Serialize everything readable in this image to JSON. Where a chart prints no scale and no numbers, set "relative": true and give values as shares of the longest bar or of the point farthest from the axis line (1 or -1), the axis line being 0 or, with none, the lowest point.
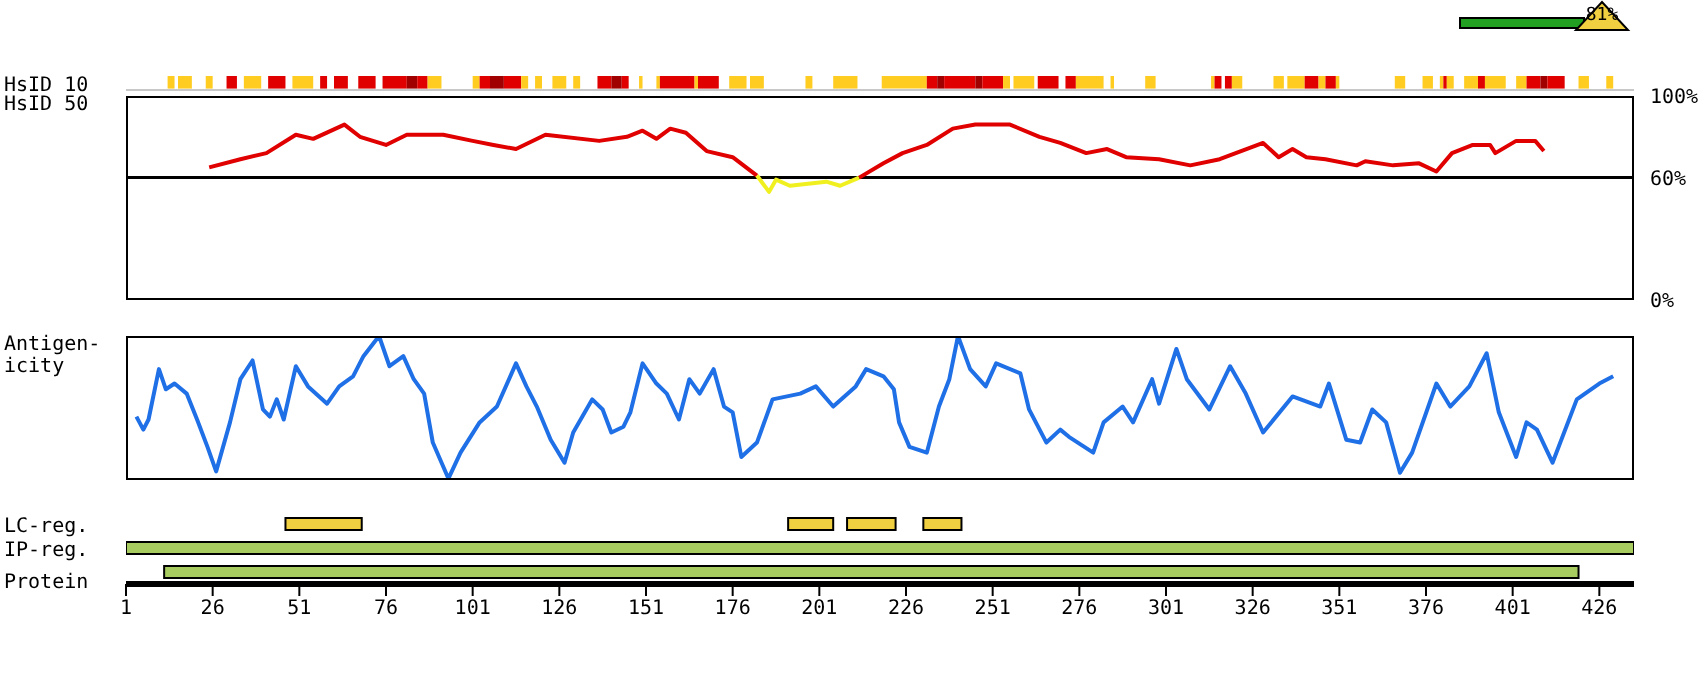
{
  "chart_data": [
    {
      "type": "bar",
      "orientation": "horizontal",
      "categories": [
        "HsID 10"
      ],
      "xlim": [
        1,
        436
      ],
      "tick_labels": "y",
      "annotations": [
        "81%"
      ],
      "series": [
        {
          "color": "#ffcc22",
          "base": [
            13
          ],
          "values": [
            2
          ]
        },
        {
          "color": "#ffcc22",
          "base": [
            16
          ],
          "values": [
            4
          ]
        },
        {
          "color": "#ffcc22",
          "base": [
            24
          ],
          "values": [
            2
          ]
        },
        {
          "color": "#e00000",
          "base": [
            30
          ],
          "values": [
            3
          ]
        },
        {
          "color": "#ffcc22",
          "base": [
            35
          ],
          "values": [
            5
          ]
        },
        {
          "color": "#e00000",
          "base": [
            42
          ],
          "values": [
            5
          ]
        },
        {
          "color": "#ffcc22",
          "base": [
            49
          ],
          "values": [
            6
          ]
        },
        {
          "color": "#e00000",
          "base": [
            57
          ],
          "values": [
            2
          ]
        },
        {
          "color": "#e00000",
          "base": [
            61
          ],
          "values": [
            4
          ]
        },
        {
          "color": "#e00000",
          "base": [
            68
          ],
          "values": [
            5
          ]
        },
        {
          "color": "#e00000",
          "base": [
            75
          ],
          "values": [
            7
          ]
        },
        {
          "color": "#a00000",
          "base": [
            82
          ],
          "values": [
            3
          ]
        },
        {
          "color": "#e00000",
          "base": [
            85
          ],
          "values": [
            3
          ]
        },
        {
          "color": "#ffcc22",
          "base": [
            88
          ],
          "values": [
            4
          ]
        },
        {
          "color": "#ffcc22",
          "base": [
            101
          ],
          "values": [
            2
          ]
        },
        {
          "color": "#e00000",
          "base": [
            103
          ],
          "values": [
            3
          ]
        },
        {
          "color": "#a00000",
          "base": [
            106
          ],
          "values": [
            4
          ]
        },
        {
          "color": "#e00000",
          "base": [
            110
          ],
          "values": [
            5
          ]
        },
        {
          "color": "#ffcc22",
          "base": [
            115
          ],
          "values": [
            2
          ]
        },
        {
          "color": "#ffcc22",
          "base": [
            119
          ],
          "values": [
            2
          ]
        },
        {
          "color": "#ffcc22",
          "base": [
            124
          ],
          "values": [
            4
          ]
        },
        {
          "color": "#ffcc22",
          "base": [
            130
          ],
          "values": [
            2
          ]
        },
        {
          "color": "#e00000",
          "base": [
            137
          ],
          "values": [
            4
          ]
        },
        {
          "color": "#a00000",
          "base": [
            141
          ],
          "values": [
            3
          ]
        },
        {
          "color": "#e00000",
          "base": [
            144
          ],
          "values": [
            2
          ]
        },
        {
          "color": "#ffcc22",
          "base": [
            149
          ],
          "values": [
            1
          ]
        },
        {
          "color": "#ffcc22",
          "base": [
            154
          ],
          "values": [
            1
          ]
        },
        {
          "color": "#e00000",
          "base": [
            155
          ],
          "values": [
            10
          ]
        },
        {
          "color": "#ffcc22",
          "base": [
            165
          ],
          "values": [
            1
          ]
        },
        {
          "color": "#e00000",
          "base": [
            166
          ],
          "values": [
            6
          ]
        },
        {
          "color": "#ffcc22",
          "base": [
            175
          ],
          "values": [
            5
          ]
        },
        {
          "color": "#ffcc22",
          "base": [
            181
          ],
          "values": [
            4
          ]
        },
        {
          "color": "#ffcc22",
          "base": [
            197
          ],
          "values": [
            2
          ]
        },
        {
          "color": "#ffcc22",
          "base": [
            205
          ],
          "values": [
            7
          ]
        },
        {
          "color": "#ffcc22",
          "base": [
            219
          ],
          "values": [
            13
          ]
        },
        {
          "color": "#e00000",
          "base": [
            232
          ],
          "values": [
            3
          ]
        },
        {
          "color": "#a00000",
          "base": [
            235
          ],
          "values": [
            2
          ]
        },
        {
          "color": "#e00000",
          "base": [
            237
          ],
          "values": [
            9
          ]
        },
        {
          "color": "#a00000",
          "base": [
            246
          ],
          "values": [
            2
          ]
        },
        {
          "color": "#e00000",
          "base": [
            248
          ],
          "values": [
            6
          ]
        },
        {
          "color": "#ffcc22",
          "base": [
            254
          ],
          "values": [
            2
          ]
        },
        {
          "color": "#ffcc22",
          "base": [
            257
          ],
          "values": [
            6
          ]
        },
        {
          "color": "#e00000",
          "base": [
            264
          ],
          "values": [
            6
          ]
        },
        {
          "color": "#e00000",
          "base": [
            272
          ],
          "values": [
            3
          ]
        },
        {
          "color": "#ffcc22",
          "base": [
            275
          ],
          "values": [
            8
          ]
        },
        {
          "color": "#ffcc22",
          "base": [
            285
          ],
          "values": [
            1
          ]
        },
        {
          "color": "#ffcc22",
          "base": [
            295
          ],
          "values": [
            3
          ]
        },
        {
          "color": "#ffcc22",
          "base": [
            314
          ],
          "values": [
            1
          ]
        },
        {
          "color": "#e00000",
          "base": [
            315
          ],
          "values": [
            2
          ]
        },
        {
          "color": "#e00000",
          "base": [
            318
          ],
          "values": [
            2
          ]
        },
        {
          "color": "#ffcc22",
          "base": [
            320
          ],
          "values": [
            3
          ]
        },
        {
          "color": "#ffcc22",
          "base": [
            332
          ],
          "values": [
            3
          ]
        },
        {
          "color": "#ffcc22",
          "base": [
            336
          ],
          "values": [
            5
          ]
        },
        {
          "color": "#e00000",
          "base": [
            341
          ],
          "values": [
            4
          ]
        },
        {
          "color": "#ffcc22",
          "base": [
            345
          ],
          "values": [
            2
          ]
        },
        {
          "color": "#e00000",
          "base": [
            347
          ],
          "values": [
            3
          ]
        },
        {
          "color": "#ffcc22",
          "base": [
            350
          ],
          "values": [
            1
          ]
        },
        {
          "color": "#ffcc22",
          "base": [
            367
          ],
          "values": [
            3
          ]
        },
        {
          "color": "#ffcc22",
          "base": [
            375
          ],
          "values": [
            3
          ]
        },
        {
          "color": "#ffcc22",
          "base": [
            380
          ],
          "values": [
            1
          ]
        },
        {
          "color": "#e00000",
          "base": [
            381
          ],
          "values": [
            1
          ]
        },
        {
          "color": "#ffcc22",
          "base": [
            382
          ],
          "values": [
            2
          ]
        },
        {
          "color": "#ffcc22",
          "base": [
            387
          ],
          "values": [
            4
          ]
        },
        {
          "color": "#e00000",
          "base": [
            391
          ],
          "values": [
            2
          ]
        },
        {
          "color": "#ffcc22",
          "base": [
            393
          ],
          "values": [
            6
          ]
        },
        {
          "color": "#ffcc22",
          "base": [
            402
          ],
          "values": [
            3
          ]
        },
        {
          "color": "#e00000",
          "base": [
            405
          ],
          "values": [
            4
          ]
        },
        {
          "color": "#a00000",
          "base": [
            409
          ],
          "values": [
            2
          ]
        },
        {
          "color": "#e00000",
          "base": [
            411
          ],
          "values": [
            5
          ]
        },
        {
          "color": "#ffcc22",
          "base": [
            420
          ],
          "values": [
            3
          ]
        },
        {
          "color": "#ffcc22",
          "base": [
            428
          ],
          "values": [
            2
          ]
        }
      ]
    },
    {
      "type": "line",
      "ylabel": "HsID 50",
      "xlim": [
        1,
        436
      ],
      "ylim": [
        0,
        100
      ],
      "yticks": [
        {
          "value": 0,
          "label": "0%"
        },
        {
          "value": 60,
          "label": "60%"
        },
        {
          "value": 100,
          "label": "100%"
        }
      ],
      "tick_labels": "y",
      "marker": "none",
      "ref_lines": [
        {
          "axis": "y",
          "value": 60,
          "color": "#000000"
        }
      ],
      "series": [
        {
          "color": "#e00000",
          "x": [
            25,
            34,
            41.5,
            50,
            55,
            64,
            68.5,
            76,
            82,
            92.5,
            101,
            107,
            113.5,
            122,
            137.5,
            145.5,
            150,
            154,
            158,
            162.5,
            168.5,
            176,
            183
          ],
          "values": [
            65,
            69,
            72,
            81,
            79,
            86,
            80,
            76,
            81,
            81,
            78,
            76,
            74,
            81,
            78,
            80,
            83,
            79,
            84,
            82,
            73,
            70,
            61
          ]
        },
        {
          "color": "#f0f020",
          "x": [
            183,
            186.5,
            188.5,
            192.5,
            203,
            207,
            212.5
          ],
          "values": [
            61,
            53,
            59,
            56,
            58,
            56,
            60
          ]
        },
        {
          "color": "#e00000",
          "x": [
            212.5,
            219.5,
            225,
            232,
            239.5,
            246,
            256,
            264.5,
            270.5,
            278,
            284,
            289.5,
            299,
            308,
            316.5,
            329,
            333.5,
            337.5,
            341.5,
            347,
            356,
            358.5,
            366.5,
            374,
            379,
            383.5,
            389.5,
            394.5,
            396,
            402,
            407.5,
            410
          ],
          "values": [
            60,
            67,
            72,
            76,
            84,
            86,
            86,
            80,
            77,
            72,
            74,
            70,
            69,
            66,
            69,
            77,
            70,
            74,
            70,
            69,
            66,
            68,
            66,
            67,
            63,
            72,
            76,
            76,
            72,
            78,
            78,
            73
          ]
        }
      ]
    },
    {
      "type": "line",
      "ylabel": "Antigen-\nicity",
      "relative": true,
      "xlim": [
        1,
        436
      ],
      "tick_labels": false,
      "marker": "none",
      "series": [
        {
          "color": "#1f6fe6",
          "x": [
            4,
            6,
            7.5,
            10.5,
            12.5,
            15,
            18.5,
            21.5,
            24.5,
            27,
            29,
            31,
            34,
            37.5,
            40.5,
            42.5,
            44.5,
            46.5,
            50,
            53.5,
            59,
            62.5,
            66.5,
            69.5,
            74,
            77,
            81,
            84,
            87,
            89.5,
            94,
            97.5,
            103,
            108,
            113.5,
            116.5,
            119.5,
            123.5,
            127.5,
            130,
            135.5,
            138.5,
            141,
            144.5,
            146.5,
            150,
            154,
            157,
            160.5,
            163.5,
            166.5,
            170.5,
            173.5,
            176,
            178.5,
            183,
            187.5,
            195.5,
            200,
            205,
            211.5,
            214.5,
            219.5,
            222.5,
            224,
            227,
            232,
            235.5,
            238.5,
            241,
            244.5,
            249,
            252,
            259,
            261.5,
            266.5,
            270.5,
            273,
            280,
            283,
            288.5,
            291.5,
            297,
            299,
            304,
            307,
            313.5,
            319.5,
            324,
            329,
            337.5,
            345.5,
            348,
            353,
            357,
            360.5,
            364.5,
            368.5,
            372,
            379,
            383,
            388.5,
            393.5,
            397,
            402,
            405,
            408,
            412.5,
            419.5,
            426,
            430
          ],
          "values": [
            0.44,
            0.35,
            0.42,
            0.77,
            0.63,
            0.67,
            0.6,
            0.42,
            0.23,
            0.06,
            0.23,
            0.4,
            0.7,
            0.83,
            0.49,
            0.44,
            0.56,
            0.42,
            0.79,
            0.65,
            0.53,
            0.65,
            0.72,
            0.86,
            1,
            0.79,
            0.86,
            0.7,
            0.6,
            0.26,
            0.01,
            0.19,
            0.4,
            0.51,
            0.81,
            0.65,
            0.51,
            0.28,
            0.12,
            0.33,
            0.56,
            0.49,
            0.33,
            0.37,
            0.47,
            0.81,
            0.67,
            0.6,
            0.42,
            0.7,
            0.6,
            0.77,
            0.51,
            0.47,
            0.16,
            0.26,
            0.56,
            0.6,
            0.65,
            0.51,
            0.65,
            0.77,
            0.72,
            0.63,
            0.4,
            0.23,
            0.19,
            0.51,
            0.7,
            1,
            0.77,
            0.65,
            0.81,
            0.74,
            0.49,
            0.26,
            0.35,
            0.3,
            0.19,
            0.4,
            0.51,
            0.4,
            0.7,
            0.53,
            0.91,
            0.7,
            0.49,
            0.79,
            0.6,
            0.33,
            0.58,
            0.51,
            0.67,
            0.28,
            0.26,
            0.49,
            0.4,
            0.05,
            0.19,
            0.67,
            0.51,
            0.65,
            0.88,
            0.47,
            0.16,
            0.4,
            0.35,
            0.12,
            0.56,
            0.67,
            0.72
          ]
        }
      ]
    },
    {
      "type": "bar",
      "orientation": "horizontal",
      "categories": [
        "LC-reg.",
        "IP-reg.",
        null
      ],
      "xlabel": "Protein",
      "xlim": [
        1,
        436
      ],
      "xticks": [
        1,
        26,
        51,
        76,
        101,
        126,
        151,
        176,
        201,
        226,
        251,
        276,
        301,
        326,
        351,
        376,
        401,
        426
      ],
      "series": [
        {
          "color": "#f0d040",
          "base": [
            47,
            null,
            null
          ],
          "values": [
            22,
            null,
            null
          ]
        },
        {
          "color": "#f0d040",
          "base": [
            192,
            null,
            null
          ],
          "values": [
            13,
            null,
            null
          ]
        },
        {
          "color": "#f0d040",
          "base": [
            209,
            null,
            null
          ],
          "values": [
            14,
            null,
            null
          ]
        },
        {
          "color": "#f0d040",
          "base": [
            231,
            null,
            null
          ],
          "values": [
            11,
            null,
            null
          ]
        },
        {
          "color": "#a8cc60",
          "base": [
            null,
            1,
            null
          ],
          "values": [
            null,
            435,
            null
          ]
        },
        {
          "color": "#a8cc60",
          "base": [
            null,
            null,
            12
          ],
          "values": [
            null,
            null,
            408
          ]
        }
      ]
    }
  ]
}
